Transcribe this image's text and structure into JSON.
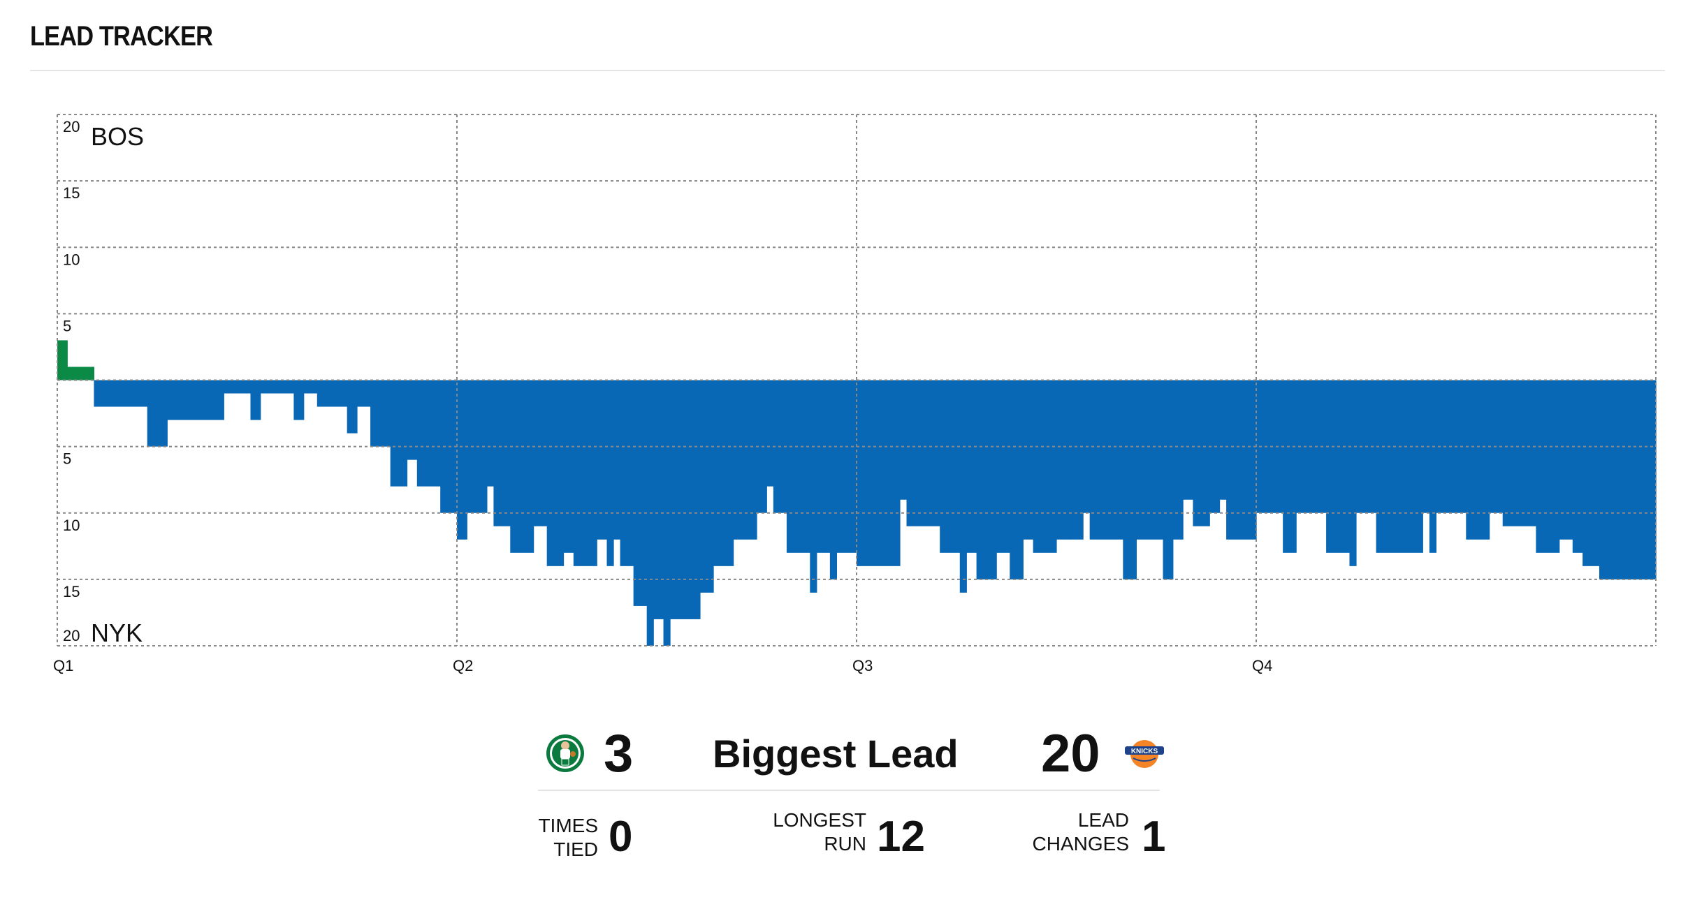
{
  "header": {
    "title": "LEAD TRACKER"
  },
  "colors": {
    "bos": "#0a8a45",
    "nyk": "#0868b6",
    "grid": "#888888"
  },
  "chart_data": {
    "type": "area",
    "x_unit": "game minute",
    "xlim": [
      0,
      48
    ],
    "ylim": [
      -20,
      20
    ],
    "y_ticks": [
      20,
      15,
      10,
      5,
      0,
      5,
      10,
      15,
      20
    ],
    "y_tick_labels": [
      "20",
      "15",
      "10",
      "5",
      "",
      "5",
      "10",
      "15",
      "20"
    ],
    "top_team_label": "BOS",
    "bottom_team_label": "NYK",
    "x_tick_labels": [
      "Q1",
      "Q2",
      "Q3",
      "Q4"
    ],
    "x_ticks": [
      0,
      12,
      24,
      36
    ],
    "note_sign": "positive = BOS lead, negative = NYK lead",
    "series": [
      {
        "team": "BOS / NYK margin",
        "steps": [
          [
            0.0,
            3
          ],
          [
            0.3,
            1
          ],
          [
            1.1,
            -2
          ],
          [
            2.7,
            -5
          ],
          [
            3.3,
            -3
          ],
          [
            5.0,
            -1
          ],
          [
            5.8,
            -3
          ],
          [
            6.1,
            -1
          ],
          [
            7.1,
            -3
          ],
          [
            7.4,
            -1
          ],
          [
            7.8,
            -2
          ],
          [
            8.7,
            -4
          ],
          [
            9.0,
            -2
          ],
          [
            9.4,
            -5
          ],
          [
            10.0,
            -8
          ],
          [
            10.5,
            -6
          ],
          [
            10.8,
            -8
          ],
          [
            11.5,
            -10
          ],
          [
            12.0,
            -12
          ],
          [
            12.3,
            -10
          ],
          [
            12.9,
            -8
          ],
          [
            13.1,
            -11
          ],
          [
            13.6,
            -13
          ],
          [
            14.3,
            -11
          ],
          [
            14.7,
            -14
          ],
          [
            15.2,
            -13
          ],
          [
            15.5,
            -14
          ],
          [
            16.2,
            -12
          ],
          [
            16.5,
            -14
          ],
          [
            16.7,
            -12
          ],
          [
            16.9,
            -14
          ],
          [
            17.3,
            -17
          ],
          [
            17.7,
            -20
          ],
          [
            17.9,
            -18
          ],
          [
            18.2,
            -20
          ],
          [
            18.4,
            -18
          ],
          [
            19.3,
            -16
          ],
          [
            19.7,
            -14
          ],
          [
            20.3,
            -12
          ],
          [
            21.0,
            -10
          ],
          [
            21.3,
            -8
          ],
          [
            21.5,
            -10
          ],
          [
            21.9,
            -13
          ],
          [
            22.6,
            -16
          ],
          [
            22.8,
            -13
          ],
          [
            23.2,
            -15
          ],
          [
            23.4,
            -13
          ],
          [
            24.0,
            -14
          ],
          [
            25.3,
            -9
          ],
          [
            25.5,
            -11
          ],
          [
            26.5,
            -13
          ],
          [
            27.1,
            -16
          ],
          [
            27.3,
            -13
          ],
          [
            27.6,
            -15
          ],
          [
            28.2,
            -13
          ],
          [
            28.6,
            -15
          ],
          [
            29.0,
            -12
          ],
          [
            29.3,
            -13
          ],
          [
            30.0,
            -12
          ],
          [
            30.4,
            -12
          ],
          [
            30.8,
            -10
          ],
          [
            31.0,
            -12
          ],
          [
            32.0,
            -15
          ],
          [
            32.4,
            -12
          ],
          [
            33.2,
            -15
          ],
          [
            33.5,
            -12
          ],
          [
            33.8,
            -9
          ],
          [
            34.1,
            -11
          ],
          [
            34.6,
            -10
          ],
          [
            34.9,
            -9
          ],
          [
            35.1,
            -12
          ],
          [
            36.0,
            -10
          ],
          [
            36.8,
            -13
          ],
          [
            37.2,
            -10
          ],
          [
            38.1,
            -13
          ],
          [
            38.8,
            -14
          ],
          [
            39.0,
            -10
          ],
          [
            39.6,
            -13
          ],
          [
            41.0,
            -10
          ],
          [
            41.2,
            -13
          ],
          [
            41.4,
            -10
          ],
          [
            42.3,
            -12
          ],
          [
            43.0,
            -10
          ],
          [
            43.4,
            -11
          ],
          [
            44.4,
            -13
          ],
          [
            45.1,
            -12
          ],
          [
            45.5,
            -13
          ],
          [
            45.8,
            -14
          ],
          [
            46.3,
            -15
          ],
          [
            48.0,
            -15
          ]
        ]
      }
    ]
  },
  "stats": {
    "bos_biggest_lead": "3",
    "biggest_lead_label": "Biggest Lead",
    "nyk_biggest_lead": "20",
    "times_tied_label_1": "TIMES",
    "times_tied_label_2": "TIED",
    "times_tied": "0",
    "longest_run_label_1": "LONGEST",
    "longest_run_label_2": "RUN",
    "longest_run": "12",
    "lead_changes_label_1": "LEAD",
    "lead_changes_label_2": "CHANGES",
    "lead_changes": "1"
  },
  "logos": {
    "bos": "celtics-logo-icon",
    "nyk": "knicks-logo-icon"
  }
}
